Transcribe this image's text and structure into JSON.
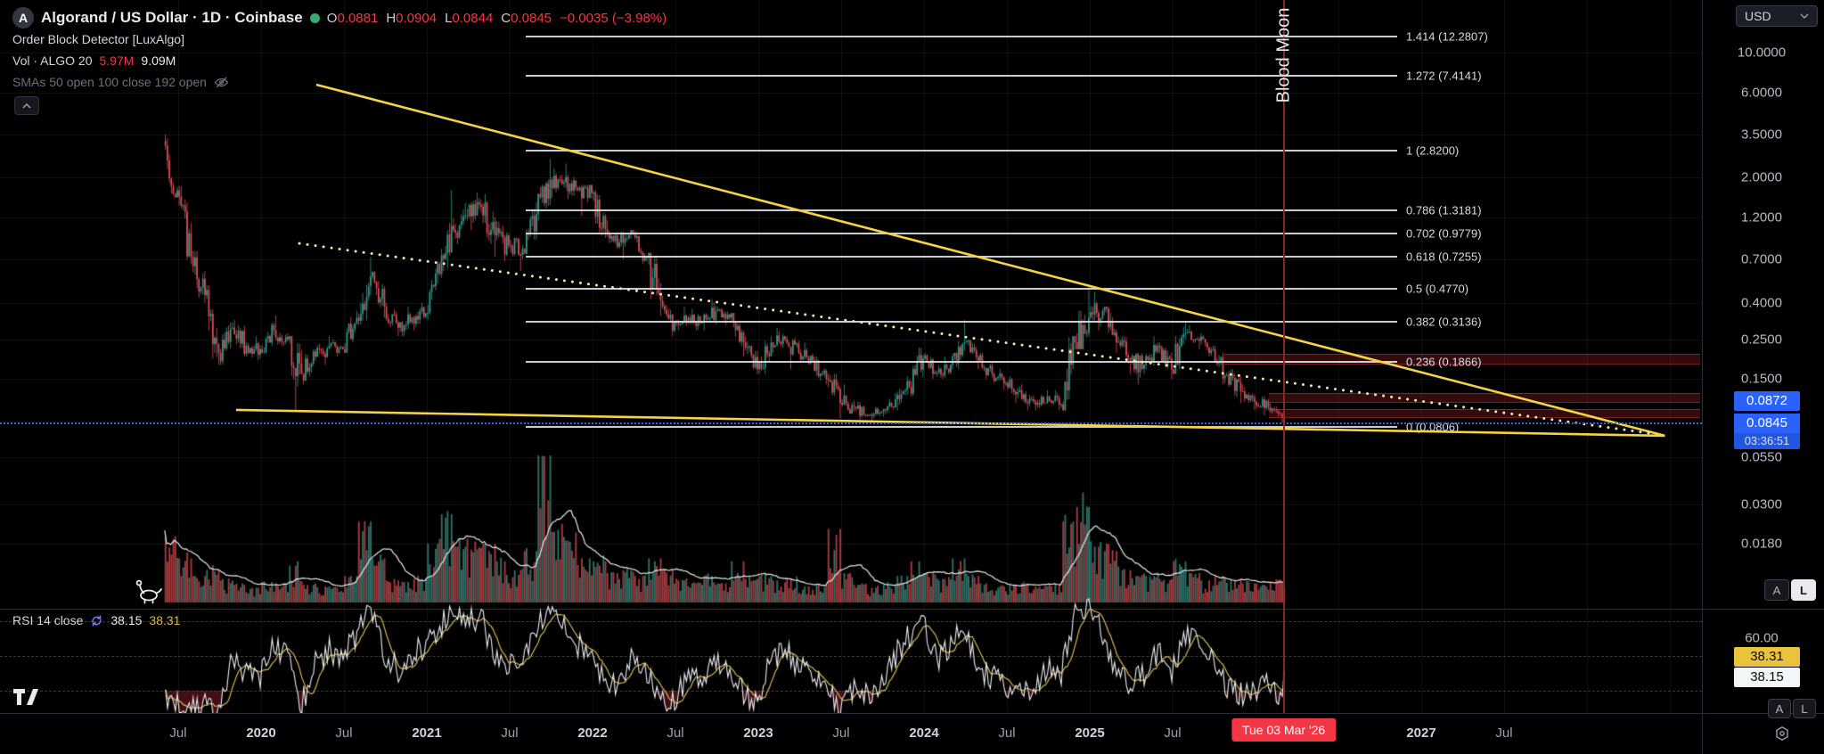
{
  "header": {
    "logo_letter": "A",
    "symbol_title": "Algorand / US Dollar · 1D · Coinbase",
    "ohlc": {
      "o_label": "O",
      "o": "0.0881",
      "h_label": "H",
      "h": "0.0904",
      "l_label": "L",
      "l": "0.0844",
      "c_label": "C",
      "c": "0.0845",
      "change": "−0.0035 (−3.98%)"
    },
    "indicator_order_block": "Order Block Detector [LuxAlgo]",
    "vol_row": {
      "label": "Vol · ALGO 20",
      "ma_value": "5.97M",
      "value": "9.09M"
    },
    "smas_row": "SMAs 50 open 100 close 192 open"
  },
  "annotations": {
    "vertical_label": "Blood Moon"
  },
  "price_axis": {
    "currency": "USD",
    "ticks": [
      10,
      6,
      3.5,
      2,
      1.2,
      0.7,
      0.4,
      0.25,
      0.15,
      0.055,
      0.03,
      0.018
    ],
    "upper_price_label": "0.0872",
    "last_price_label": "0.0845",
    "countdown": "03:36:51"
  },
  "rsi_pane": {
    "legend": "RSI 14 close",
    "value_main": "38.15",
    "value_ma": "38.31",
    "axis_tick": "60.00",
    "label_ma": "38.31",
    "label_main": "38.15"
  },
  "buttons": {
    "auto": "A",
    "log": "L"
  },
  "time_axis": {
    "ticks": [
      {
        "t": 2019.5,
        "label": "Jul"
      },
      {
        "t": 2020,
        "label": "2020"
      },
      {
        "t": 2020.5,
        "label": "Jul"
      },
      {
        "t": 2021,
        "label": "2021"
      },
      {
        "t": 2021.5,
        "label": "Jul"
      },
      {
        "t": 2022,
        "label": "2022"
      },
      {
        "t": 2022.5,
        "label": "Jul"
      },
      {
        "t": 2023,
        "label": "2023"
      },
      {
        "t": 2023.5,
        "label": "Jul"
      },
      {
        "t": 2024,
        "label": "2024"
      },
      {
        "t": 2024.5,
        "label": "Jul"
      },
      {
        "t": 2025,
        "label": "2025"
      },
      {
        "t": 2025.5,
        "label": "Jul"
      },
      {
        "t": 2027,
        "label": "2027"
      },
      {
        "t": 2027.5,
        "label": "Jul"
      }
    ],
    "current_marker": {
      "t": 2026.17,
      "label": "Tue 03 Mar '26"
    }
  },
  "colors": {
    "up": "#2f9e8f",
    "down": "#e04f57",
    "accent_red": "#f23645",
    "accent_blue": "#2962ff",
    "trendline_yellow": "#f5d342",
    "dotted_line": "#efe6a8",
    "rsi_yellow": "#d8b64a",
    "order_block_red": "#aa232a",
    "blood_moon_red": "#8c2a2a"
  },
  "chart_data": {
    "type": "candlestick",
    "title": "Algorand / US Dollar, 1D, Coinbase",
    "scale": "log",
    "visible_price_range": [
      0.018,
      12.5
    ],
    "visible_time_range": [
      2019.4,
      2027.9
    ],
    "current": {
      "open": 0.0881,
      "high": 0.0904,
      "low": 0.0844,
      "close": 0.0845,
      "change": -0.0035,
      "change_pct": -3.98,
      "rsi": 38.15,
      "rsi_ma": 38.31,
      "vol_ma": "5.97M",
      "vol": "9.09M"
    },
    "columns": [
      "year",
      "month",
      "open",
      "high",
      "low",
      "close",
      "vol_rel",
      "rsi"
    ],
    "months": [
      [
        2019,
        6,
        3.2,
        3.5,
        1.55,
        1.7,
        0.45,
        25
      ],
      [
        2019,
        7,
        1.7,
        1.8,
        0.66,
        0.72,
        0.3,
        22
      ],
      [
        2019,
        8,
        0.72,
        0.78,
        0.4,
        0.44,
        0.18,
        24
      ],
      [
        2019,
        9,
        0.44,
        0.5,
        0.18,
        0.21,
        0.22,
        18
      ],
      [
        2019,
        10,
        0.21,
        0.31,
        0.18,
        0.29,
        0.15,
        48
      ],
      [
        2019,
        11,
        0.29,
        0.32,
        0.2,
        0.23,
        0.12,
        40
      ],
      [
        2019,
        12,
        0.23,
        0.26,
        0.19,
        0.22,
        0.1,
        38
      ],
      [
        2020,
        1,
        0.22,
        0.31,
        0.21,
        0.28,
        0.14,
        56
      ],
      [
        2020,
        2,
        0.28,
        0.34,
        0.23,
        0.25,
        0.13,
        50
      ],
      [
        2020,
        3,
        0.25,
        0.26,
        0.1,
        0.16,
        0.25,
        22
      ],
      [
        2020,
        4,
        0.16,
        0.22,
        0.14,
        0.2,
        0.12,
        45
      ],
      [
        2020,
        5,
        0.2,
        0.26,
        0.18,
        0.23,
        0.11,
        53
      ],
      [
        2020,
        6,
        0.23,
        0.25,
        0.2,
        0.22,
        0.1,
        50
      ],
      [
        2020,
        7,
        0.22,
        0.36,
        0.21,
        0.33,
        0.18,
        62
      ],
      [
        2020,
        8,
        0.33,
        0.72,
        0.3,
        0.56,
        0.55,
        76
      ],
      [
        2020,
        9,
        0.56,
        0.6,
        0.33,
        0.38,
        0.3,
        52
      ],
      [
        2020,
        10,
        0.38,
        0.4,
        0.26,
        0.29,
        0.15,
        42
      ],
      [
        2020,
        11,
        0.29,
        0.38,
        0.26,
        0.33,
        0.14,
        52
      ],
      [
        2020,
        12,
        0.33,
        0.4,
        0.28,
        0.35,
        0.16,
        55
      ],
      [
        2021,
        1,
        0.35,
        0.68,
        0.32,
        0.58,
        0.4,
        66
      ],
      [
        2021,
        2,
        0.58,
        1.71,
        0.55,
        1.02,
        0.6,
        80
      ],
      [
        2021,
        3,
        1.02,
        1.45,
        0.85,
        1.22,
        0.38,
        70
      ],
      [
        2021,
        4,
        1.22,
        1.65,
        1.02,
        1.38,
        0.36,
        72
      ],
      [
        2021,
        5,
        1.38,
        1.62,
        0.72,
        0.95,
        0.4,
        48
      ],
      [
        2021,
        6,
        0.95,
        1.15,
        0.68,
        0.84,
        0.28,
        44
      ],
      [
        2021,
        7,
        0.84,
        0.92,
        0.6,
        0.8,
        0.22,
        48
      ],
      [
        2021,
        8,
        0.8,
        1.45,
        0.75,
        1.25,
        0.35,
        66
      ],
      [
        2021,
        9,
        1.25,
        2.55,
        1.15,
        1.95,
        1.0,
        76
      ],
      [
        2021,
        10,
        1.95,
        2.25,
        1.55,
        1.88,
        0.48,
        66
      ],
      [
        2021,
        11,
        1.88,
        2.4,
        1.52,
        1.7,
        0.42,
        56
      ],
      [
        2021,
        12,
        1.7,
        1.82,
        1.22,
        1.64,
        0.3,
        50
      ],
      [
        2022,
        1,
        1.64,
        1.7,
        0.92,
        1.03,
        0.28,
        36
      ],
      [
        2022,
        2,
        1.03,
        1.16,
        0.8,
        0.87,
        0.2,
        35
      ],
      [
        2022,
        3,
        0.87,
        1.02,
        0.7,
        0.96,
        0.22,
        49
      ],
      [
        2022,
        4,
        0.96,
        1.0,
        0.66,
        0.71,
        0.18,
        40
      ],
      [
        2022,
        5,
        0.71,
        0.76,
        0.34,
        0.41,
        0.3,
        24
      ],
      [
        2022,
        6,
        0.41,
        0.44,
        0.26,
        0.31,
        0.22,
        22
      ],
      [
        2022,
        7,
        0.31,
        0.38,
        0.28,
        0.33,
        0.15,
        41
      ],
      [
        2022,
        8,
        0.33,
        0.37,
        0.28,
        0.31,
        0.13,
        39
      ],
      [
        2022,
        9,
        0.31,
        0.42,
        0.28,
        0.36,
        0.18,
        46
      ],
      [
        2022,
        10,
        0.36,
        0.38,
        0.3,
        0.33,
        0.13,
        44
      ],
      [
        2022,
        11,
        0.33,
        0.35,
        0.2,
        0.24,
        0.28,
        28
      ],
      [
        2022,
        12,
        0.24,
        0.26,
        0.16,
        0.17,
        0.16,
        24
      ],
      [
        2023,
        1,
        0.17,
        0.26,
        0.16,
        0.24,
        0.18,
        48
      ],
      [
        2023,
        2,
        0.24,
        0.29,
        0.21,
        0.25,
        0.15,
        53
      ],
      [
        2023,
        3,
        0.25,
        0.26,
        0.17,
        0.21,
        0.16,
        43
      ],
      [
        2023,
        4,
        0.21,
        0.24,
        0.18,
        0.19,
        0.11,
        41
      ],
      [
        2023,
        5,
        0.19,
        0.2,
        0.14,
        0.15,
        0.12,
        30
      ],
      [
        2023,
        6,
        0.15,
        0.16,
        0.09,
        0.11,
        0.5,
        21
      ],
      [
        2023,
        7,
        0.11,
        0.14,
        0.096,
        0.105,
        0.2,
        32
      ],
      [
        2023,
        8,
        0.105,
        0.112,
        0.088,
        0.094,
        0.12,
        28
      ],
      [
        2023,
        9,
        0.094,
        0.105,
        0.086,
        0.098,
        0.1,
        36
      ],
      [
        2023,
        10,
        0.098,
        0.125,
        0.092,
        0.115,
        0.12,
        50
      ],
      [
        2023,
        11,
        0.115,
        0.155,
        0.1,
        0.135,
        0.18,
        62
      ],
      [
        2023,
        12,
        0.135,
        0.225,
        0.12,
        0.195,
        0.28,
        72
      ],
      [
        2024,
        1,
        0.195,
        0.21,
        0.15,
        0.163,
        0.2,
        46
      ],
      [
        2024,
        2,
        0.163,
        0.2,
        0.15,
        0.18,
        0.16,
        56
      ],
      [
        2024,
        3,
        0.18,
        0.32,
        0.17,
        0.24,
        0.3,
        66
      ],
      [
        2024,
        4,
        0.24,
        0.25,
        0.17,
        0.19,
        0.18,
        42
      ],
      [
        2024,
        5,
        0.19,
        0.21,
        0.15,
        0.16,
        0.13,
        38
      ],
      [
        2024,
        6,
        0.16,
        0.17,
        0.13,
        0.142,
        0.11,
        33
      ],
      [
        2024,
        7,
        0.142,
        0.155,
        0.11,
        0.13,
        0.12,
        36
      ],
      [
        2024,
        8,
        0.13,
        0.14,
        0.1,
        0.112,
        0.13,
        29
      ],
      [
        2024,
        9,
        0.112,
        0.13,
        0.1,
        0.12,
        0.11,
        43
      ],
      [
        2024,
        10,
        0.12,
        0.13,
        0.1,
        0.108,
        0.12,
        40
      ],
      [
        2024,
        11,
        0.108,
        0.26,
        0.1,
        0.24,
        0.55,
        76
      ],
      [
        2024,
        12,
        0.24,
        0.5,
        0.22,
        0.33,
        0.65,
        77
      ],
      [
        2025,
        1,
        0.33,
        0.46,
        0.28,
        0.36,
        0.38,
        62
      ],
      [
        2025,
        2,
        0.36,
        0.38,
        0.21,
        0.24,
        0.35,
        42
      ],
      [
        2025,
        3,
        0.24,
        0.26,
        0.16,
        0.19,
        0.22,
        35
      ],
      [
        2025,
        4,
        0.19,
        0.21,
        0.14,
        0.18,
        0.18,
        39
      ],
      [
        2025,
        5,
        0.18,
        0.26,
        0.17,
        0.23,
        0.18,
        52
      ],
      [
        2025,
        6,
        0.23,
        0.24,
        0.15,
        0.17,
        0.16,
        40
      ],
      [
        2025,
        7,
        0.17,
        0.31,
        0.16,
        0.27,
        0.28,
        64
      ],
      [
        2025,
        8,
        0.27,
        0.3,
        0.22,
        0.245,
        0.2,
        55
      ],
      [
        2025,
        9,
        0.245,
        0.27,
        0.2,
        0.22,
        0.15,
        47
      ],
      [
        2025,
        10,
        0.22,
        0.23,
        0.14,
        0.158,
        0.18,
        32
      ],
      [
        2025,
        11,
        0.158,
        0.17,
        0.11,
        0.128,
        0.16,
        28
      ],
      [
        2025,
        12,
        0.128,
        0.14,
        0.1,
        0.112,
        0.13,
        31
      ],
      [
        2026,
        1,
        0.112,
        0.12,
        0.094,
        0.104,
        0.12,
        33
      ],
      [
        2026,
        2,
        0.104,
        0.11,
        0.085,
        0.0915,
        0.14,
        28
      ],
      [
        2026,
        3,
        0.0915,
        0.094,
        0.0844,
        0.0845,
        0.1,
        38.15
      ]
    ],
    "fib_levels": [
      {
        "label": "1.414 (12.2807)",
        "price": 12.2807
      },
      {
        "label": "1.272 (7.4141)",
        "price": 7.4141
      },
      {
        "label": "1 (2.8200)",
        "price": 2.82
      },
      {
        "label": "0.786 (1.3181)",
        "price": 1.3181
      },
      {
        "label": "0.702 (0.9779)",
        "price": 0.9779
      },
      {
        "label": "0.618 (0.7255)",
        "price": 0.7255
      },
      {
        "label": "0.5 (0.4770)",
        "price": 0.477
      },
      {
        "label": "0.382 (0.3136)",
        "price": 0.3136
      },
      {
        "label": "0.236 (0.1866)",
        "price": 0.1866
      },
      {
        "label": "0 (0.0806)",
        "price": 0.0806
      }
    ],
    "order_blocks": [
      {
        "price_top": 0.207,
        "price_bottom": 0.181,
        "t_start": 2025.81
      },
      {
        "price_top": 0.125,
        "price_bottom": 0.11,
        "t_start": 2026.08
      },
      {
        "price_top": 0.1018,
        "price_bottom": 0.0905,
        "t_start": 2026.08
      }
    ],
    "trendlines": [
      {
        "name": "upper-resistance",
        "style": "solid",
        "t1": 2020.333,
        "p1": 6.62,
        "t2": 2028.47,
        "p2": 0.0722
      },
      {
        "name": "lower-support",
        "style": "solid",
        "t1": 2019.849,
        "p1": 0.1006,
        "t2": 2028.47,
        "p2": 0.0722
      },
      {
        "name": "dotted-resistance",
        "style": "dotted",
        "t1": 2020.231,
        "p1": 0.858,
        "t2": 2028.41,
        "p2": 0.0738
      }
    ],
    "avg_close_line": {
      "price": 0.0845,
      "style": "dotted"
    },
    "event_line": {
      "t": 2026.17,
      "label": "Blood Moon"
    }
  }
}
